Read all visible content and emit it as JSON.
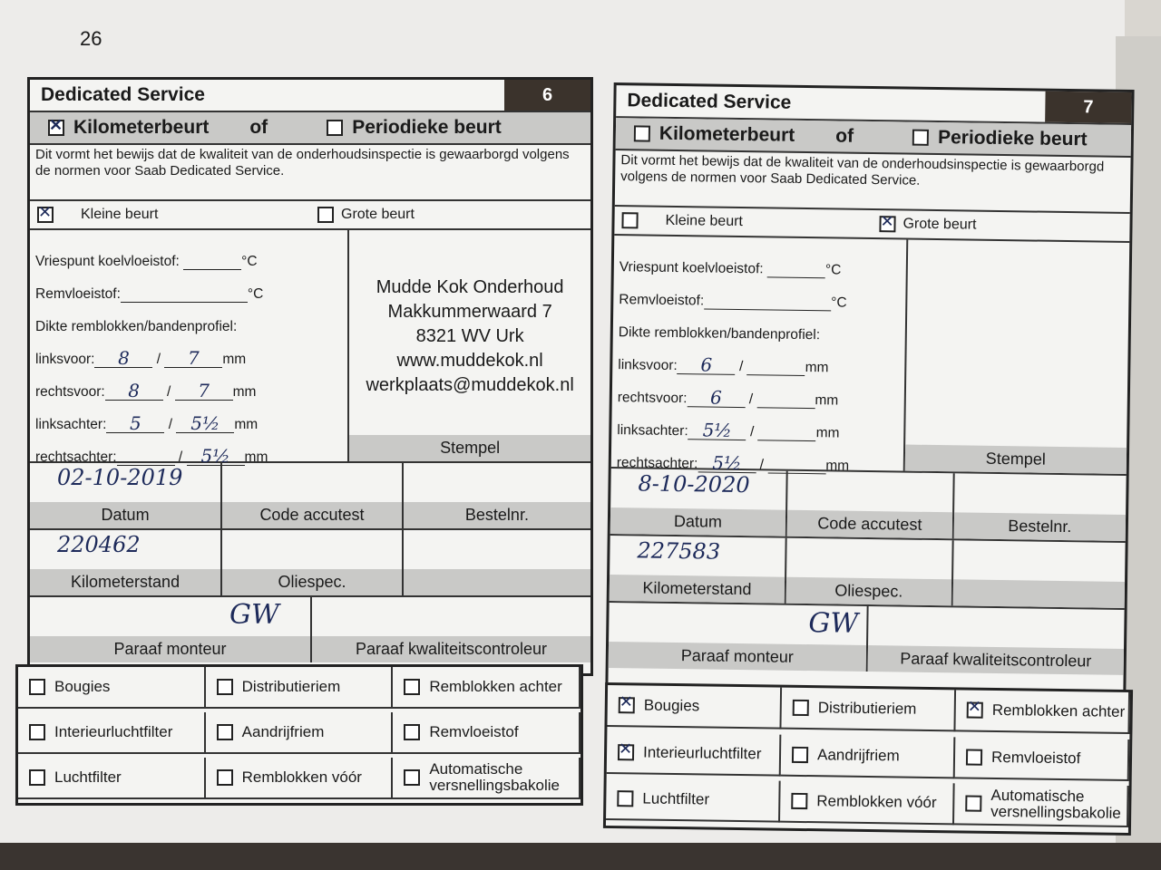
{
  "page_number": "26",
  "cards": [
    {
      "title": "Dedicated Service",
      "number": "6",
      "kilometerbeurt": {
        "label": "Kilometerbeurt",
        "checked": true
      },
      "of_label": "of",
      "periodieke": {
        "label": "Periodieke beurt",
        "checked": false
      },
      "statement": "Dit vormt het bewijs dat de kwaliteit van de onderhoudsinspectie is gewaarborgd volgens de normen voor Saab Dedicated Service.",
      "kleine": {
        "label": "Kleine beurt",
        "checked": true
      },
      "grote": {
        "label": "Grote beurt",
        "checked": false
      },
      "vriespunt_label": "Vriespunt koelvloeistof:",
      "vriespunt_value": "",
      "celsius": "°C",
      "rem_label": "Remvloeistof:",
      "rem_value": "",
      "dikte_label": "Dikte remblokken/bandenprofiel:",
      "wheels": [
        {
          "label": "linksvoor:",
          "a": "8",
          "b": "7",
          "unit": "mm"
        },
        {
          "label": "rechtsvoor:",
          "a": "8",
          "b": "7",
          "unit": "mm"
        },
        {
          "label": "linksachter:",
          "a": "5",
          "b": "5½",
          "unit": "mm"
        },
        {
          "label": "rechtsachter:",
          "a": "",
          "b": "5½",
          "unit": "mm"
        }
      ],
      "stamp_lines": [
        "Mudde Kok Onderhoud",
        "Makkummerwaard 7",
        "8321 WV Urk",
        "www.muddekok.nl",
        "werkplaats@muddekok.nl"
      ],
      "stamp_label": "Stempel",
      "datum_label": "Datum",
      "datum_value": "02-10-2019",
      "accutest_label": "Code accutest",
      "bestelnr_label": "Bestelnr.",
      "km_label": "Kilometerstand",
      "km_value": "220462",
      "oliespec_label": "Oliespec.",
      "monteur_label": "Paraaf monteur",
      "monteur_sign": "GW",
      "kwaliteit_label": "Paraaf kwaliteitscontroleur",
      "checklist": [
        {
          "label": "Bougies",
          "checked": false
        },
        {
          "label": "Distributieriem",
          "checked": false
        },
        {
          "label": "Remblokken achter",
          "checked": false
        },
        {
          "label": "Interieurluchtfilter",
          "checked": false
        },
        {
          "label": "Aandrijfriem",
          "checked": false
        },
        {
          "label": "Remvloeistof",
          "checked": false
        },
        {
          "label": "Luchtfilter",
          "checked": false
        },
        {
          "label": "Remblokken vóór",
          "checked": false
        },
        {
          "label": "Automatische versnellingsbakolie",
          "checked": false
        }
      ]
    },
    {
      "title": "Dedicated Service",
      "number": "7",
      "kilometerbeurt": {
        "label": "Kilometerbeurt",
        "checked": false
      },
      "of_label": "of",
      "periodieke": {
        "label": "Periodieke beurt",
        "checked": false
      },
      "statement": "Dit vormt het bewijs dat de kwaliteit van de onderhoudsinspectie is gewaarborgd volgens de normen voor Saab Dedicated Service.",
      "kleine": {
        "label": "Kleine beurt",
        "checked": false
      },
      "grote": {
        "label": "Grote beurt",
        "checked": true
      },
      "vriespunt_label": "Vriespunt koelvloeistof:",
      "vriespunt_value": "",
      "celsius": "°C",
      "rem_label": "Remvloeistof:",
      "rem_value": "",
      "dikte_label": "Dikte remblokken/bandenprofiel:",
      "wheels": [
        {
          "label": "linksvoor:",
          "a": "6",
          "b": "",
          "unit": "mm"
        },
        {
          "label": "rechtsvoor:",
          "a": "6",
          "b": "",
          "unit": "mm"
        },
        {
          "label": "linksachter:",
          "a": "5½",
          "b": "",
          "unit": "mm"
        },
        {
          "label": "rechtsachter:",
          "a": "5½",
          "b": "",
          "unit": "mm"
        }
      ],
      "stamp_lines": [],
      "stamp_label": "Stempel",
      "datum_label": "Datum",
      "datum_value": "8-10-2020",
      "accutest_label": "Code accutest",
      "bestelnr_label": "Bestelnr.",
      "km_label": "Kilometerstand",
      "km_value": "227583",
      "oliespec_label": "Oliespec.",
      "monteur_label": "Paraaf monteur",
      "monteur_sign": "GW",
      "kwaliteit_label": "Paraaf kwaliteitscontroleur",
      "checklist": [
        {
          "label": "Bougies",
          "checked": true
        },
        {
          "label": "Distributieriem",
          "checked": false
        },
        {
          "label": "Remblokken achter",
          "checked": true
        },
        {
          "label": "Interieurluchtfilter",
          "checked": true
        },
        {
          "label": "Aandrijfriem",
          "checked": false
        },
        {
          "label": "Remvloeistof",
          "checked": false
        },
        {
          "label": "Luchtfilter",
          "checked": false
        },
        {
          "label": "Remblokken vóór",
          "checked": false
        },
        {
          "label": "Automatische versnellingsbakolie",
          "checked": false
        }
      ]
    }
  ]
}
